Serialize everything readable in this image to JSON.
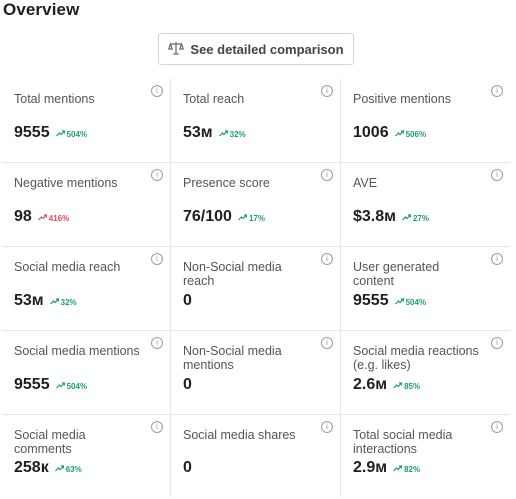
{
  "header": {
    "title": "Overview"
  },
  "compare_button": {
    "label": "See detailed comparison"
  },
  "metrics": [
    {
      "label": "Total mentions",
      "value": "9555",
      "change": "504%",
      "trend": "up"
    },
    {
      "label": "Total reach",
      "value": "53м",
      "change": "32%",
      "trend": "up"
    },
    {
      "label": "Positive mentions",
      "value": "1006",
      "change": "506%",
      "trend": "up"
    },
    {
      "label": "Negative mentions",
      "value": "98",
      "change": "416%",
      "trend": "down"
    },
    {
      "label": "Presence score",
      "value": "76/100",
      "change": "17%",
      "trend": "up"
    },
    {
      "label": "AVE",
      "value": "$3.8м",
      "change": "27%",
      "trend": "up"
    },
    {
      "label": "Social media reach",
      "value": "53м",
      "change": "32%",
      "trend": "up"
    },
    {
      "label": "Non-Social media reach",
      "value": "0",
      "change": "",
      "trend": "none"
    },
    {
      "label": "User generated content",
      "value": "9555",
      "change": "504%",
      "trend": "up"
    },
    {
      "label": "Social media mentions",
      "value": "9555",
      "change": "504%",
      "trend": "up"
    },
    {
      "label": "Non-Social media mentions",
      "value": "0",
      "change": "",
      "trend": "none"
    },
    {
      "label": "Social media reactions (e.g. likes)",
      "value": "2.6м",
      "change": "85%",
      "trend": "up"
    },
    {
      "label": "Social media comments",
      "value": "258к",
      "change": "63%",
      "trend": "up"
    },
    {
      "label": "Social media shares",
      "value": "0",
      "change": "",
      "trend": "none"
    },
    {
      "label": "Total social media interactions",
      "value": "2.9м",
      "change": "82%",
      "trend": "up"
    }
  ],
  "info_glyph": "i",
  "colors": {
    "up": "#1aa260",
    "down": "#e34b5b",
    "border": "#e4e6ea"
  },
  "icons": {
    "compare": "scale-icon",
    "info": "info-icon",
    "trend_up": "trend-up-icon",
    "trend_down": "trend-down-icon"
  }
}
